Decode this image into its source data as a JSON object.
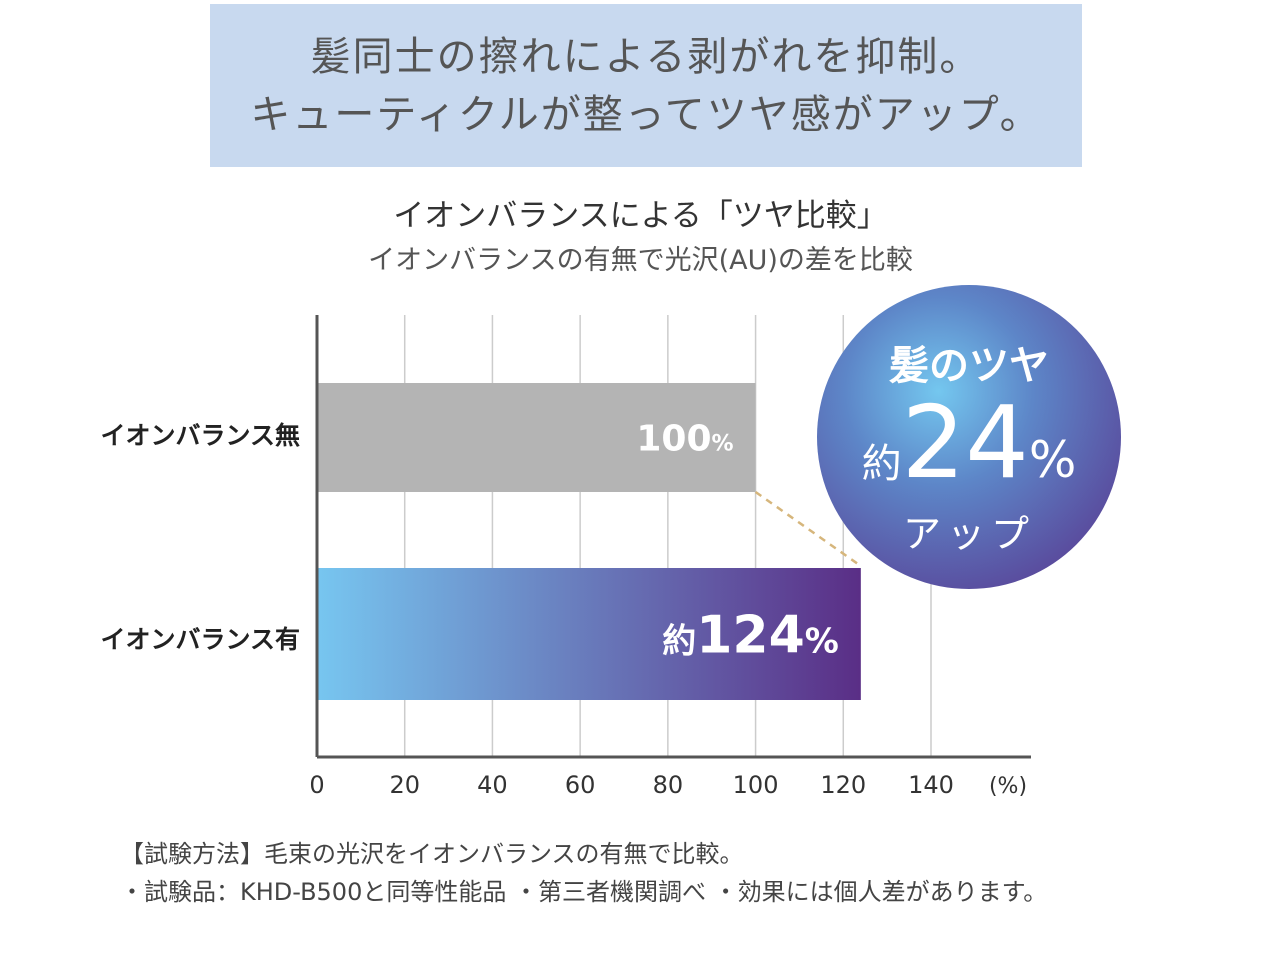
{
  "header": {
    "line1": "髪同士の擦れによる剥がれを抑制。",
    "line2": "キューティクルが整ってツヤ感がアップ。"
  },
  "chart_data": {
    "type": "bar",
    "orientation": "horizontal",
    "title": "イオンバランスによる「ツヤ比較」",
    "subtitle": "イオンバランスの有無で光沢(AU)の差を比較",
    "categories": [
      "イオンバランス無",
      "イオンバランス有"
    ],
    "values": [
      100,
      124
    ],
    "data_labels": [
      {
        "prefix": "",
        "value": "100",
        "unit": "%"
      },
      {
        "prefix": "約",
        "value": "124",
        "unit": "%"
      }
    ],
    "bar_colors": [
      [
        "#b4b4b4",
        "#b4b4b4"
      ],
      [
        "#77c6f0",
        "#5a2e86"
      ]
    ],
    "xlim": [
      0,
      150
    ],
    "x_ticks": [
      "0",
      "20",
      "40",
      "60",
      "80",
      "100",
      "120",
      "140"
    ],
    "x_unit": "(%)",
    "grid": true
  },
  "badge": {
    "line1": "髪のツヤ",
    "prefix": "約",
    "value": "24",
    "unit": "%",
    "line3": "アップ"
  },
  "notes": [
    "【試験方法】毛束の光沢をイオンバランスの有無で比較。",
    "・試験品：KHD-B500と同等性能品 ・第三者機関調べ ・効果には個人差があります。"
  ]
}
